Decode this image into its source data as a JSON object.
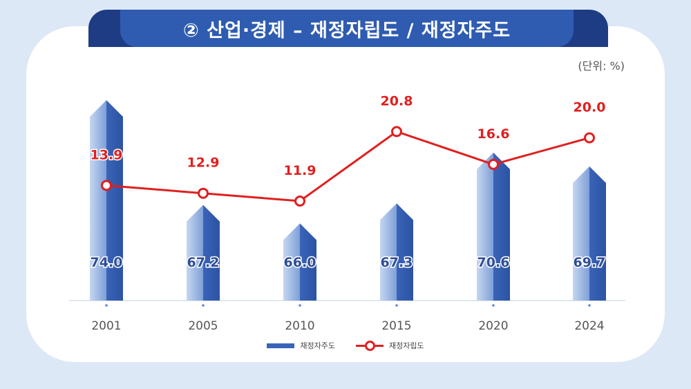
{
  "title": "② 산업·경제 – 재정자립도 / 재정자주도",
  "unit_label": "(단위: %)",
  "legend": {
    "bar_label": "재정자주도",
    "line_label": "재정자립도"
  },
  "colors": {
    "bar": "#3a64b8",
    "bar_light": "#a9c0e6",
    "line": "#e01f1f",
    "title_bg": "#2f5cb0"
  },
  "chart_data": {
    "type": "bar",
    "categories": [
      "2001",
      "2005",
      "2010",
      "2015",
      "2020",
      "2024"
    ],
    "series": [
      {
        "name": "재정자주도",
        "type": "bar",
        "values": [
          74.0,
          67.2,
          66.0,
          67.3,
          70.6,
          69.7
        ]
      },
      {
        "name": "재정자립도",
        "type": "line",
        "values": [
          13.9,
          12.9,
          11.9,
          20.8,
          16.6,
          20.0
        ]
      }
    ],
    "ylabel": "%"
  }
}
